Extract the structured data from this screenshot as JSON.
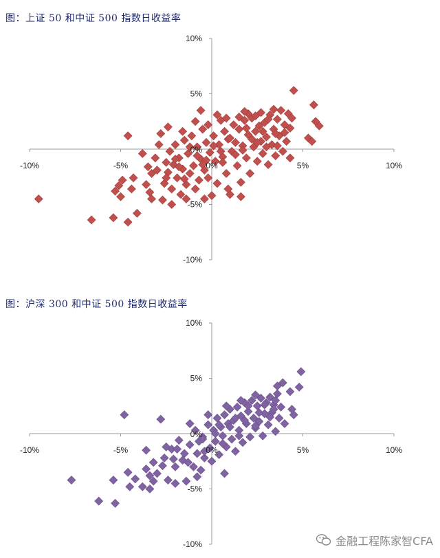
{
  "charts": [
    {
      "title": "图：上证 50 和中证 500 指数日收益率",
      "color": "#c0504d",
      "stroke": "#a33b38"
    },
    {
      "title": "图：沪深 300 和中证 500 指数日收益率",
      "color": "#8064a2",
      "stroke": "#6a4f8c"
    }
  ],
  "watermark": {
    "text": "金融工程陈家智CFA",
    "icon": "wechat-icon"
  },
  "chart_data": [
    {
      "type": "scatter",
      "title": "图：上证 50 和中证 500 指数日收益率",
      "xlim": [
        -10,
        10
      ],
      "ylim": [
        -10,
        10
      ],
      "x_ticks": [
        "-10%",
        "-5%",
        "0%",
        "5%",
        "10%"
      ],
      "y_ticks": [
        "10%",
        "5%",
        "0%",
        "-5%",
        "-10%"
      ],
      "grid": false,
      "legend": "none",
      "series": [
        {
          "points": [
            [
              -9.5,
              -4.5
            ],
            [
              -6.6,
              -6.4
            ],
            [
              -5.4,
              -6.2
            ],
            [
              -4.6,
              -6.6
            ],
            [
              -4.1,
              -5.8
            ],
            [
              -5.3,
              -3.8
            ],
            [
              -5.0,
              -4.3
            ],
            [
              -5.1,
              -3.3
            ],
            [
              -4.9,
              -2.8
            ],
            [
              -4.4,
              -3.6
            ],
            [
              -4.6,
              1.2
            ],
            [
              -4.3,
              -2.6
            ],
            [
              -3.6,
              -3.2
            ],
            [
              -3.5,
              -1.6
            ],
            [
              -3.4,
              -3.9
            ],
            [
              -3.3,
              -2.2
            ],
            [
              -3.1,
              -0.8
            ],
            [
              -3.0,
              -1.9
            ],
            [
              -2.8,
              1.4
            ],
            [
              -2.7,
              -4.6
            ],
            [
              -2.6,
              -3.1
            ],
            [
              -2.5,
              -1.2
            ],
            [
              -2.4,
              -2.1
            ],
            [
              -2.3,
              -0.2
            ],
            [
              -2.2,
              -3.6
            ],
            [
              -2.1,
              -1.4
            ],
            [
              -2.0,
              0.4
            ],
            [
              -1.9,
              -2.6
            ],
            [
              -1.8,
              -0.8
            ],
            [
              -1.7,
              -4.1
            ],
            [
              -1.6,
              -1.8
            ],
            [
              -1.5,
              0.8
            ],
            [
              -1.4,
              -3.2
            ],
            [
              -1.3,
              -0.4
            ],
            [
              -1.2,
              -2.2
            ],
            [
              -1.1,
              1.2
            ],
            [
              -1.0,
              -1.5
            ],
            [
              -0.9,
              -3.6
            ],
            [
              -0.8,
              0.2
            ],
            [
              -0.7,
              -2.8
            ],
            [
              -0.6,
              -0.9
            ],
            [
              -0.5,
              1.8
            ],
            [
              -0.4,
              -1.9
            ],
            [
              -0.3,
              0.6
            ],
            [
              -0.2,
              -2.6
            ],
            [
              -0.1,
              -0.3
            ],
            [
              0.0,
              -4.2
            ],
            [
              0.1,
              1.2
            ],
            [
              0.2,
              -1.1
            ],
            [
              0.3,
              -3.1
            ],
            [
              0.4,
              0.4
            ],
            [
              0.5,
              2.6
            ],
            [
              0.6,
              -0.7
            ],
            [
              0.7,
              1.6
            ],
            [
              0.8,
              -2.2
            ],
            [
              0.9,
              0.9
            ],
            [
              1.0,
              -4.1
            ],
            [
              1.1,
              -0.2
            ],
            [
              1.2,
              2.2
            ],
            [
              1.3,
              0.6
            ],
            [
              1.4,
              -1.5
            ],
            [
              1.5,
              1.8
            ],
            [
              1.6,
              -3.0
            ],
            [
              1.7,
              0.3
            ],
            [
              1.8,
              2.6
            ],
            [
              1.9,
              -0.8
            ],
            [
              2.0,
              1.3
            ],
            [
              2.1,
              -2.2
            ],
            [
              2.2,
              2.8
            ],
            [
              2.3,
              0.2
            ],
            [
              2.4,
              1.6
            ],
            [
              2.5,
              -1.1
            ],
            [
              2.6,
              2.1
            ],
            [
              2.7,
              0.7
            ],
            [
              2.8,
              -0.4
            ],
            [
              2.9,
              2.4
            ],
            [
              3.0,
              1.1
            ],
            [
              3.1,
              -1.4
            ],
            [
              3.2,
              3.1
            ],
            [
              3.3,
              0.4
            ],
            [
              3.4,
              1.8
            ],
            [
              3.5,
              -0.6
            ],
            [
              3.6,
              2.7
            ],
            [
              3.7,
              1.2
            ],
            [
              3.8,
              3.5
            ],
            [
              3.9,
              -0.2
            ],
            [
              4.0,
              2.2
            ],
            [
              4.1,
              0.7
            ],
            [
              4.2,
              3.2
            ],
            [
              4.3,
              -0.8
            ],
            [
              4.5,
              5.3
            ],
            [
              4.4,
              2.8
            ],
            [
              5.3,
              1.0
            ],
            [
              5.5,
              0.7
            ],
            [
              5.6,
              4.0
            ],
            [
              5.7,
              2.5
            ],
            [
              5.9,
              2.1
            ],
            [
              -1.6,
              1.6
            ],
            [
              -0.9,
              2.5
            ],
            [
              -0.6,
              3.5
            ],
            [
              -0.2,
              2.2
            ],
            [
              0.3,
              3.1
            ],
            [
              0.8,
              2.8
            ],
            [
              1.5,
              2.9
            ],
            [
              2.0,
              3.2
            ],
            [
              2.7,
              3.3
            ],
            [
              3.4,
              3.6
            ],
            [
              3.1,
              2.7
            ],
            [
              2.4,
              3.0
            ],
            [
              1.8,
              3.4
            ],
            [
              -3.3,
              -4.5
            ],
            [
              -2.2,
              -5.0
            ],
            [
              -1.4,
              -4.5
            ],
            [
              -0.4,
              -4.5
            ],
            [
              0.9,
              -3.6
            ],
            [
              1.6,
              -4.3
            ],
            [
              -2.4,
              2.0
            ],
            [
              -3.8,
              -0.4
            ],
            [
              -2.9,
              0.4
            ],
            [
              -2.0,
              -0.9
            ],
            [
              -1.2,
              0.2
            ],
            [
              -0.3,
              -1.0
            ],
            [
              0.5,
              -0.2
            ],
            [
              1.3,
              -0.5
            ],
            [
              2.2,
              0.9
            ],
            [
              3.0,
              0.2
            ],
            [
              -1.8,
              -1.6
            ],
            [
              -0.8,
              -0.6
            ],
            [
              0.1,
              0.3
            ],
            [
              1.0,
              1.0
            ],
            [
              1.9,
              1.9
            ],
            [
              2.8,
              1.6
            ],
            [
              3.6,
              0.3
            ],
            [
              4.0,
              1.5
            ],
            [
              -2.5,
              -2.6
            ],
            [
              -1.5,
              -2.7
            ],
            [
              -0.5,
              -1.4
            ],
            [
              0.6,
              -1.2
            ],
            [
              1.7,
              -0.1
            ],
            [
              2.5,
              0.6
            ],
            [
              3.5,
              1.4
            ],
            [
              4.3,
              1.9
            ]
          ]
        }
      ]
    },
    {
      "type": "scatter",
      "title": "图：沪深 300 和中证 500 指数日收益率",
      "xlim": [
        -10,
        10
      ],
      "ylim": [
        -10,
        10
      ],
      "x_ticks": [
        "-10%",
        "-5%",
        "0%",
        "5%",
        "10%"
      ],
      "y_ticks": [
        "10%",
        "5%",
        "0%",
        "-5%",
        "-10%"
      ],
      "grid": false,
      "legend": "none",
      "series": [
        {
          "points": [
            [
              -7.7,
              -4.2
            ],
            [
              -6.2,
              -6.1
            ],
            [
              -5.3,
              -6.3
            ],
            [
              -5.4,
              -4.2
            ],
            [
              -4.6,
              -3.5
            ],
            [
              -4.5,
              -4.8
            ],
            [
              -4.2,
              -4.1
            ],
            [
              -3.8,
              -4.8
            ],
            [
              -3.6,
              -3.2
            ],
            [
              -3.4,
              -5.0
            ],
            [
              -3.2,
              -2.6
            ],
            [
              -3.0,
              -3.6
            ],
            [
              -2.8,
              1.3
            ],
            [
              -2.6,
              -2.2
            ],
            [
              -2.4,
              -4.2
            ],
            [
              -2.2,
              -1.4
            ],
            [
              -2.0,
              -3.0
            ],
            [
              -1.8,
              -0.6
            ],
            [
              -1.6,
              -2.4
            ],
            [
              -1.4,
              -4.3
            ],
            [
              -1.2,
              -1.0
            ],
            [
              -1.0,
              -3.0
            ],
            [
              -0.9,
              0.3
            ],
            [
              -0.8,
              -1.8
            ],
            [
              -0.6,
              -3.3
            ],
            [
              -0.5,
              -0.3
            ],
            [
              -0.4,
              -2.2
            ],
            [
              -0.2,
              0.8
            ],
            [
              -0.1,
              -1.3
            ],
            [
              0.0,
              -2.5
            ],
            [
              0.1,
              0.3
            ],
            [
              0.2,
              -0.7
            ],
            [
              0.3,
              1.4
            ],
            [
              0.4,
              -1.9
            ],
            [
              0.5,
              0.6
            ],
            [
              0.6,
              -0.2
            ],
            [
              0.7,
              1.7
            ],
            [
              0.8,
              -1.2
            ],
            [
              0.9,
              0.9
            ],
            [
              1.0,
              2.2
            ],
            [
              1.1,
              -0.5
            ],
            [
              1.2,
              1.2
            ],
            [
              1.3,
              -1.6
            ],
            [
              1.4,
              2.4
            ],
            [
              1.5,
              0.3
            ],
            [
              1.6,
              1.6
            ],
            [
              1.7,
              -0.8
            ],
            [
              1.8,
              2.8
            ],
            [
              1.9,
              0.9
            ],
            [
              2.0,
              2.0
            ],
            [
              2.1,
              -0.3
            ],
            [
              2.2,
              3.0
            ],
            [
              2.3,
              1.4
            ],
            [
              2.4,
              0.5
            ],
            [
              2.5,
              2.5
            ],
            [
              2.6,
              1.1
            ],
            [
              2.7,
              3.2
            ],
            [
              2.8,
              -0.2
            ],
            [
              2.9,
              1.8
            ],
            [
              3.0,
              2.8
            ],
            [
              3.1,
              0.8
            ],
            [
              3.2,
              3.3
            ],
            [
              3.3,
              1.9
            ],
            [
              3.4,
              2.6
            ],
            [
              3.5,
              0.2
            ],
            [
              3.6,
              3.6
            ],
            [
              3.7,
              1.4
            ],
            [
              3.8,
              2.4
            ],
            [
              3.6,
              4.3
            ],
            [
              3.9,
              4.6
            ],
            [
              4.3,
              3.8
            ],
            [
              4.0,
              0.9
            ],
            [
              4.5,
              1.7
            ],
            [
              4.8,
              4.2
            ],
            [
              4.9,
              5.6
            ],
            [
              4.4,
              2.2
            ],
            [
              -4.8,
              1.7
            ],
            [
              -3.6,
              -1.5
            ],
            [
              -2.5,
              -1.2
            ],
            [
              -1.5,
              -1.8
            ],
            [
              -0.7,
              -0.7
            ],
            [
              0.2,
              0.0
            ],
            [
              1.0,
              0.6
            ],
            [
              1.8,
              1.2
            ],
            [
              2.6,
              1.9
            ],
            [
              3.4,
              2.2
            ],
            [
              -2.1,
              -2.3
            ],
            [
              -1.3,
              -2.6
            ],
            [
              -0.4,
              -1.6
            ],
            [
              0.6,
              -0.9
            ],
            [
              1.5,
              -0.2
            ],
            [
              2.4,
              0.7
            ],
            [
              3.2,
              1.5
            ],
            [
              -3.2,
              -4.3
            ],
            [
              -2.0,
              -4.5
            ],
            [
              -0.8,
              -3.9
            ],
            [
              0.7,
              -3.6
            ],
            [
              -1.2,
              0.9
            ],
            [
              -0.2,
              1.7
            ],
            [
              0.8,
              2.5
            ],
            [
              1.6,
              3.0
            ],
            [
              2.4,
              3.5
            ],
            [
              -3.4,
              -3.8
            ],
            [
              -2.7,
              -2.9
            ],
            [
              -1.9,
              -1.4
            ],
            [
              -0.5,
              -0.5
            ],
            [
              0.4,
              0.8
            ],
            [
              1.3,
              1.4
            ],
            [
              2.0,
              2.5
            ],
            [
              2.9,
              2.6
            ],
            [
              3.5,
              3.0
            ]
          ]
        }
      ]
    }
  ]
}
